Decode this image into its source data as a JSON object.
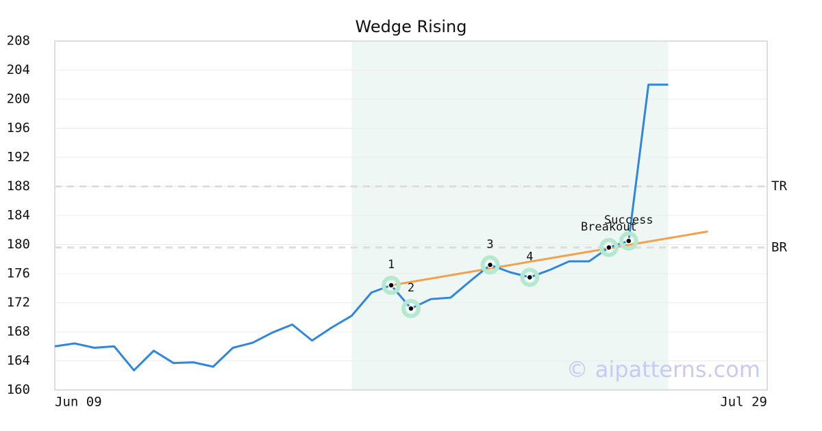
{
  "chart_data": {
    "type": "line",
    "title": "Wedge Rising",
    "categories": [
      "Jun 09",
      null,
      null,
      null,
      null,
      null,
      null,
      null,
      null,
      null,
      null,
      null,
      null,
      null,
      null,
      null,
      null,
      null,
      null,
      null,
      null,
      null,
      null,
      null,
      null,
      null,
      null,
      null,
      null,
      null,
      null,
      null,
      null,
      null,
      null,
      null,
      "Jul 29"
    ],
    "series": [
      {
        "name": "Price",
        "color": "#2e86de",
        "values": [
          166.0,
          166.4,
          165.8,
          166.0,
          162.7,
          165.4,
          163.7,
          163.8,
          163.2,
          165.8,
          166.5,
          167.9,
          169.0,
          166.8,
          168.6,
          170.2,
          173.4,
          174.4,
          171.2,
          172.5,
          172.7,
          175.0,
          177.2,
          176.2,
          175.5,
          176.5,
          177.7,
          177.7,
          179.6,
          180.5,
          202.0,
          202.0,
          null,
          null,
          null,
          null,
          null
        ]
      }
    ],
    "ylim": [
      160,
      208
    ],
    "yticks": [
      160,
      164,
      168,
      172,
      176,
      180,
      184,
      188,
      192,
      196,
      200,
      204,
      208
    ],
    "grid": true,
    "highlight": {
      "start": 15,
      "end": 31,
      "color": "#eef7f3"
    },
    "pattern_points": [
      {
        "label": "1",
        "index": 17,
        "value": 174.4
      },
      {
        "label": "2",
        "index": 18,
        "value": 171.2
      },
      {
        "label": "3",
        "index": 22,
        "value": 177.2
      },
      {
        "label": "4",
        "index": 24,
        "value": 175.5
      },
      {
        "label": "Breakout",
        "index": 28,
        "value": 179.6
      },
      {
        "label": "Success",
        "index": 29,
        "value": 180.5
      }
    ],
    "trend_line": {
      "color": "#f4a04a",
      "start": {
        "index": 17,
        "value": 174.4
      },
      "end": {
        "index": 33,
        "value": 181.8
      }
    },
    "levels": [
      {
        "label": "TR",
        "value": 188
      },
      {
        "label": "BR",
        "value": 179.6
      }
    ],
    "watermark": "© aipatterns.com"
  }
}
